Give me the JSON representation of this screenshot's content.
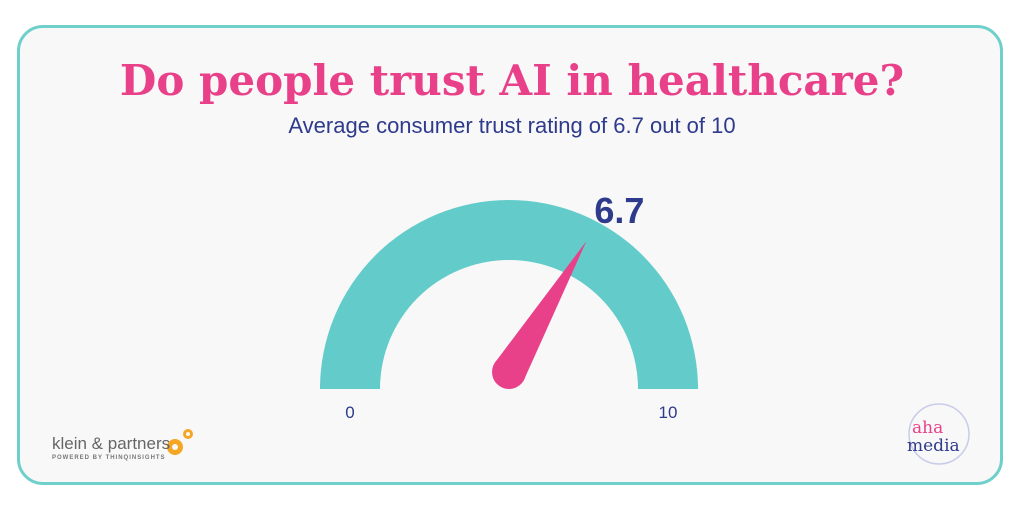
{
  "title": "Do people trust AI in healthcare?",
  "subtitle": "Average consumer trust rating of 6.7 out of 10",
  "chart_data": {
    "type": "gauge",
    "value": 6.7,
    "value_label": "6.7",
    "min": 0,
    "max": 10,
    "min_label": "0",
    "max_label": "10",
    "colors": {
      "arc": "#63CCCA",
      "needle": "#E8418A",
      "label": "#2E3A8C"
    }
  },
  "logos": {
    "left": {
      "name": "klein & partners",
      "tagline": "POWERED BY THINQINSIGHTS"
    },
    "right": {
      "line1": "aha",
      "line2": "media"
    }
  }
}
